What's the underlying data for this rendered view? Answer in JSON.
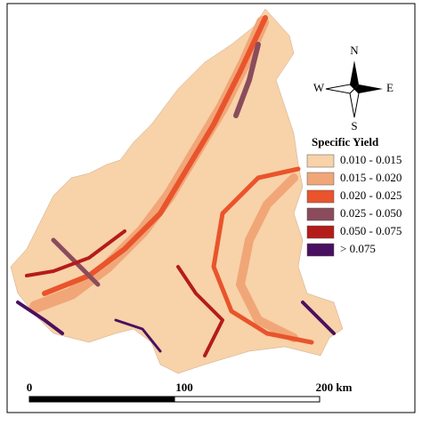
{
  "compass": {
    "north": "N",
    "south": "S",
    "east": "E",
    "west": "W"
  },
  "legend": {
    "title": "Specific Yield",
    "items": [
      {
        "label": "0.010 - 0.015",
        "color": "#f8d2a8"
      },
      {
        "label": "0.015 - 0.020",
        "color": "#f1a678"
      },
      {
        "label": "0.020 - 0.025",
        "color": "#e9542c"
      },
      {
        "label": "0.025 - 0.050",
        "color": "#8a4c5c"
      },
      {
        "label": "0.050 - 0.075",
        "color": "#b41c1a"
      },
      {
        "label": "> 0.075",
        "color": "#4a1060"
      }
    ]
  },
  "scale_bar": {
    "labels": [
      "0",
      "100",
      "200 km"
    ]
  }
}
